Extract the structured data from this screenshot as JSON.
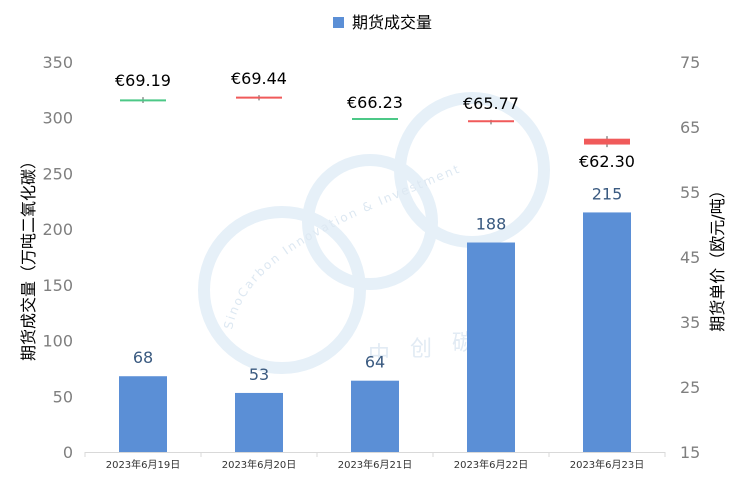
{
  "chart_data": {
    "type": "bar",
    "legend": {
      "position": "top",
      "label": "期货成交量",
      "color": "#5b8fd6"
    },
    "categories": [
      "2023年6月19日",
      "2023年6月20日",
      "2023年6月21日",
      "2023年6月22日",
      "2023年6月23日"
    ],
    "series": [
      {
        "name": "期货成交量",
        "axis": "left",
        "values": [
          68,
          53,
          64,
          188,
          215
        ],
        "labels": [
          "68",
          "53",
          "64",
          "188",
          "215"
        ],
        "color": "#5b8fd6"
      }
    ],
    "price_series": {
      "axis": "right",
      "type": "candlestick",
      "open": [
        69.0,
        69.6,
        66.23,
        66.0,
        63.2
      ],
      "close": [
        69.19,
        69.44,
        66.23,
        65.77,
        62.3
      ],
      "high": [
        69.6,
        69.9,
        66.23,
        66.1,
        63.6
      ],
      "low": [
        68.7,
        69.1,
        66.23,
        65.4,
        61.9
      ],
      "labels": [
        "€69.19",
        "€69.44",
        "€66.23",
        "€65.77",
        "€62.30"
      ],
      "up_color": "#4cc887",
      "down_color": "#f05a5a"
    },
    "ylabel": "期货成交量（万吨二氧化碳）",
    "ylabel_right": "期货单价（欧元/吨）",
    "ylim": [
      0,
      350
    ],
    "ylim_right": [
      15,
      75
    ],
    "yticks": [
      "0",
      "50",
      "100",
      "150",
      "200",
      "250",
      "300",
      "350"
    ],
    "yticks_right": [
      "15",
      "25",
      "35",
      "45",
      "55",
      "65",
      "75"
    ],
    "grid": false
  },
  "watermark": {
    "arc_text": "SinoCarbon Innovation & Investment",
    "cn_text": "中创碳投"
  }
}
